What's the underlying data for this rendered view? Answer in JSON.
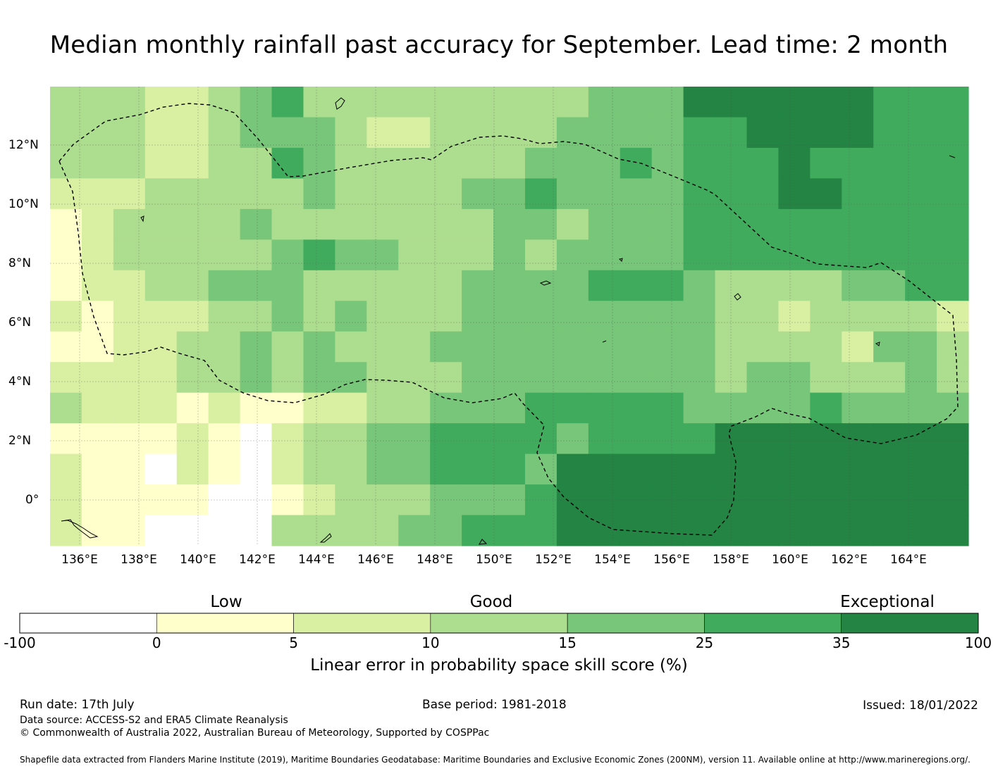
{
  "title": "Median monthly rainfall past accuracy for September. Lead time: 2 month",
  "map": {
    "lat_labels": [
      "12°N",
      "10°N",
      "8°N",
      "6°N",
      "4°N",
      "2°N",
      "0°"
    ],
    "lon_labels": [
      "136°E",
      "138°E",
      "140°E",
      "142°E",
      "144°E",
      "146°E",
      "148°E",
      "150°E",
      "152°E",
      "154°E",
      "156°E",
      "158°E",
      "160°E",
      "162°E",
      "164°E"
    ]
  },
  "colorbar": {
    "categories": [
      "Low",
      "Good",
      "Exceptional"
    ],
    "ticks": [
      "-100",
      "0",
      "5",
      "10",
      "15",
      "25",
      "35",
      "100"
    ],
    "colors": [
      "#ffffff",
      "#ffffcc",
      "#d9f0a3",
      "#addd8e",
      "#78c679",
      "#41ab5d",
      "#238443"
    ],
    "title": "Linear error in probability space skill score (%)"
  },
  "footer": {
    "run_date": "Run date: 17th July",
    "base_period": "Base period: 1981-2018",
    "issued": "Issued: 18/01/2022",
    "data_source": "Data source: ACCESS-S2 and ERA5 Climate Reanalysis",
    "copyright": "© Commonwealth of Australia 2022, Australian Bureau of Meteorology, Supported by COSPPac",
    "shapefile": "Shapefile data extracted from Flanders Marine Institute (2019), Maritime Boundaries Geodatabase: Maritime Boundaries and Exclusive Economic Zones (200NM), version 11. Available online at http://www.marineregions.org/."
  }
}
